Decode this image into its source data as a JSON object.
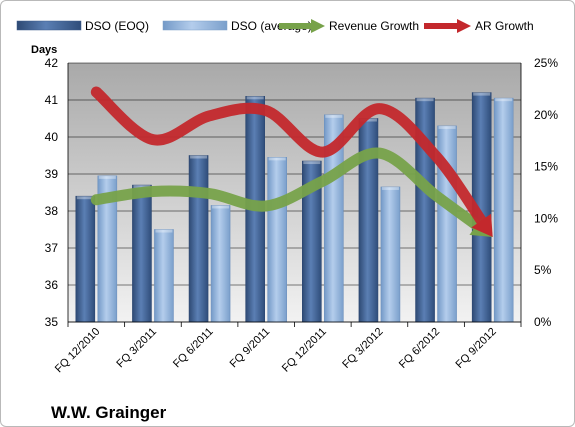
{
  "chart_data": {
    "type": "bar",
    "title": "",
    "company": "W.W. Grainger",
    "ylabel": "Days",
    "y2label": "",
    "categories": [
      "FQ 12/2010",
      "FQ 3/2011",
      "FQ 6/2011",
      "FQ 9/2011",
      "FQ 12/2011",
      "FQ 3/2012",
      "FQ 6/2012",
      "FQ 9/2012"
    ],
    "ylim": [
      35,
      42
    ],
    "yticks": [
      "35",
      "36",
      "37",
      "38",
      "39",
      "40",
      "41",
      "42"
    ],
    "y2lim": [
      0,
      25
    ],
    "y2ticks": [
      "0%",
      "5%",
      "10%",
      "15%",
      "20%",
      "25%"
    ],
    "grid": true,
    "legend_position": "top",
    "series": [
      {
        "name": "DSO (EOQ)",
        "kind": "bar",
        "axis": "left",
        "color": "#4a6b9d",
        "values": [
          38.4,
          38.7,
          39.5,
          41.1,
          39.35,
          40.5,
          41.05,
          41.2
        ]
      },
      {
        "name": "DSO (average)",
        "kind": "bar",
        "axis": "left",
        "color": "#9bbbe0",
        "values": [
          38.95,
          37.5,
          38.15,
          39.45,
          40.6,
          38.65,
          40.3,
          41.05
        ]
      },
      {
        "name": "Revenue Growth",
        "kind": "line",
        "axis": "right",
        "unit": "%",
        "color": "#77a24a",
        "values": [
          11.8,
          12.6,
          12.4,
          11.2,
          13.6,
          16.3,
          12.2,
          8.2
        ]
      },
      {
        "name": "AR Growth",
        "kind": "line",
        "axis": "right",
        "unit": "%",
        "color": "#c3282c",
        "values": [
          22.2,
          17.6,
          19.9,
          20.4,
          16.4,
          20.6,
          16.0,
          8.2
        ]
      }
    ]
  }
}
